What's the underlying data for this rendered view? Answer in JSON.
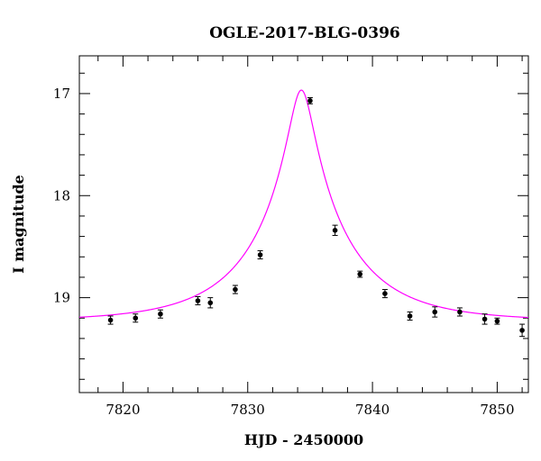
{
  "chart_data": {
    "type": "scatter",
    "title": "OGLE-2017-BLG-0396",
    "xlabel": "HJD - 2450000",
    "ylabel": "I magnitude",
    "xlim": [
      7816.5,
      7852.5
    ],
    "ylim": [
      19.93,
      16.63
    ],
    "y_inverted": true,
    "x_ticks": [
      7820,
      7830,
      7840,
      7850
    ],
    "y_ticks": [
      17,
      18,
      19
    ],
    "grid": false,
    "colors": {
      "model": "#ff00ff",
      "points": "#000000"
    },
    "series": [
      {
        "kind": "points",
        "x": [
          7819,
          7821,
          7823,
          7826,
          7827,
          7829,
          7831,
          7835,
          7837,
          7839,
          7841,
          7843,
          7845,
          7847,
          7849,
          7850,
          7852
        ],
        "y": [
          19.22,
          19.2,
          19.16,
          19.03,
          19.05,
          18.92,
          18.58,
          17.07,
          18.34,
          18.77,
          18.96,
          19.18,
          19.14,
          19.14,
          19.21,
          19.23,
          19.32
        ],
        "yerr": [
          0.04,
          0.04,
          0.04,
          0.04,
          0.05,
          0.04,
          0.04,
          0.03,
          0.05,
          0.03,
          0.04,
          0.04,
          0.05,
          0.04,
          0.05,
          0.03,
          0.06
        ]
      },
      {
        "kind": "model",
        "model": {
          "t0": 7834.3,
          "u0": 0.125,
          "tE": 7.5,
          "baseline": 19.23
        }
      }
    ]
  }
}
